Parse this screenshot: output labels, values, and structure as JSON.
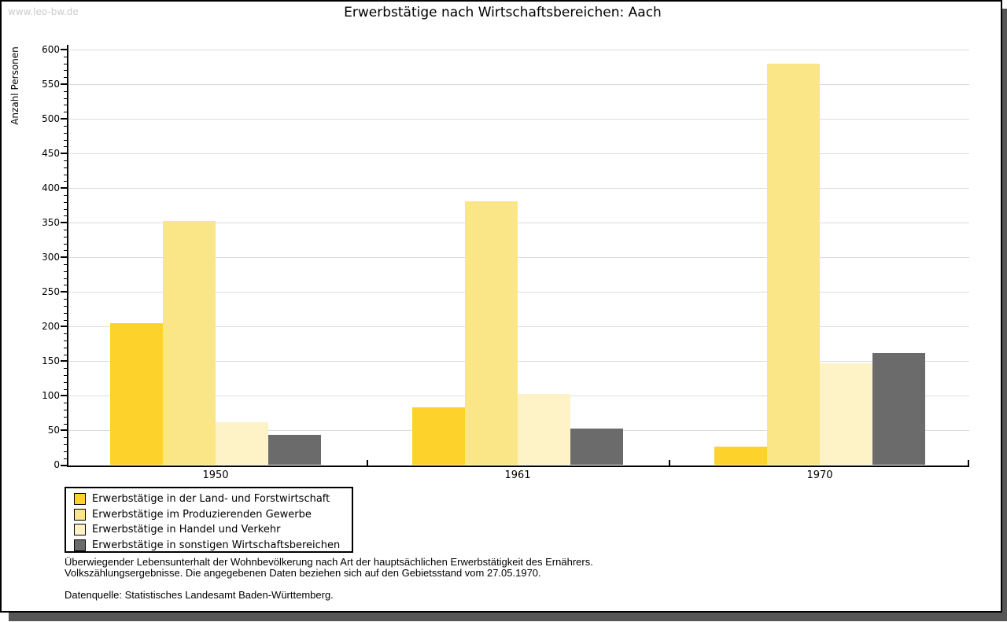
{
  "watermark": "www.leo-bw.de",
  "title": "Erwerbstätige nach Wirtschaftsbereichen: Aach",
  "chart_data": {
    "type": "bar",
    "title": "Erwerbstätige nach Wirtschaftsbereichen: Aach",
    "xlabel": "",
    "ylabel": "Anzahl Personen",
    "categories": [
      "1950",
      "1961",
      "1970"
    ],
    "series": [
      {
        "name": "Erwerbstätige in der Land- und Forstwirtschaft",
        "color": "#fcd22b",
        "values": [
          205,
          83,
          27
        ]
      },
      {
        "name": "Erwerbstätige im Produzierenden Gewerbe",
        "color": "#fbe687",
        "values": [
          352,
          381,
          579
        ]
      },
      {
        "name": "Erwerbstätige in Handel und Verkehr",
        "color": "#fdf3c6",
        "values": [
          62,
          103,
          147
        ]
      },
      {
        "name": "Erwerbstätige in sonstigen Wirtschaftsbereichen",
        "color": "#6b6b6b",
        "values": [
          44,
          53,
          162
        ]
      }
    ],
    "ylim": [
      0,
      600
    ],
    "ytick_step": 50,
    "y_minor_tick_step": 10,
    "grid": true,
    "gridline_color": "#dcdcdc",
    "legend_position": "bottom-left"
  },
  "footnotes": {
    "line1": "Überwiegender Lebensunterhalt der Wohnbevölkerung nach Art der hauptsächlichen Erwerbstätigkeit des Ernährers.",
    "line2": "Volkszählungsergebnisse. Die angegebenen Daten beziehen sich auf den Gebietsstand vom 27.05.1970.",
    "source": "Datenquelle: Statistisches Landesamt Baden-Württemberg."
  }
}
